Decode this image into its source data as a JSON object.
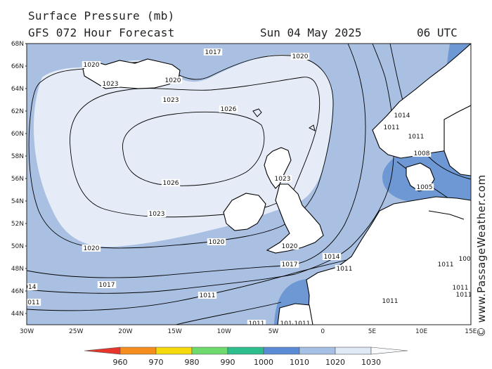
{
  "header": {
    "title": "Surface Pressure (mb)",
    "subtitle": "GFS 072 Hour Forecast",
    "date": "Sun 04 May 2025",
    "time": "06 UTC"
  },
  "credit": "© www.PassageWeather.com",
  "map": {
    "lat_labels": [
      "68N",
      "66N",
      "64N",
      "62N",
      "60N",
      "58N",
      "56N",
      "54N",
      "52N",
      "50N",
      "48N",
      "46N",
      "44N"
    ],
    "lon_labels": [
      "30W",
      "25W",
      "20W",
      "15W",
      "10W",
      "5W",
      "0",
      "5E",
      "10E",
      "15E"
    ],
    "colors": {
      "p1030": "#e6ecf7",
      "p1020": "#a9c0e2",
      "p1010": "#6e98d4",
      "land": "#ffffff",
      "coast": "#000000",
      "isobar": "#000000"
    },
    "isobar_labels": [
      "1020",
      "1023",
      "1026",
      "1026",
      "1023",
      "1020",
      "1017",
      "1014",
      "1011",
      "1011",
      "1020",
      "1020",
      "1023",
      "1020",
      "1017",
      "1014",
      "1011",
      "1011",
      "1011",
      "1017",
      "1020",
      "1023",
      "1014",
      "1011",
      "1011",
      "1008",
      "1005",
      "1011",
      "1008",
      "1011",
      "1011",
      "1011",
      "1014",
      "1011"
    ]
  },
  "legend": {
    "labels": [
      "960",
      "970",
      "980",
      "990",
      "1000",
      "1010",
      "1020",
      "1030"
    ],
    "colors": [
      "#e8342a",
      "#f68e1e",
      "#f5d90a",
      "#6ed96d",
      "#2dbe8e",
      "#5a8bd4",
      "#a6bfe4",
      "#dfe8f5",
      "#f7f9fc"
    ]
  }
}
